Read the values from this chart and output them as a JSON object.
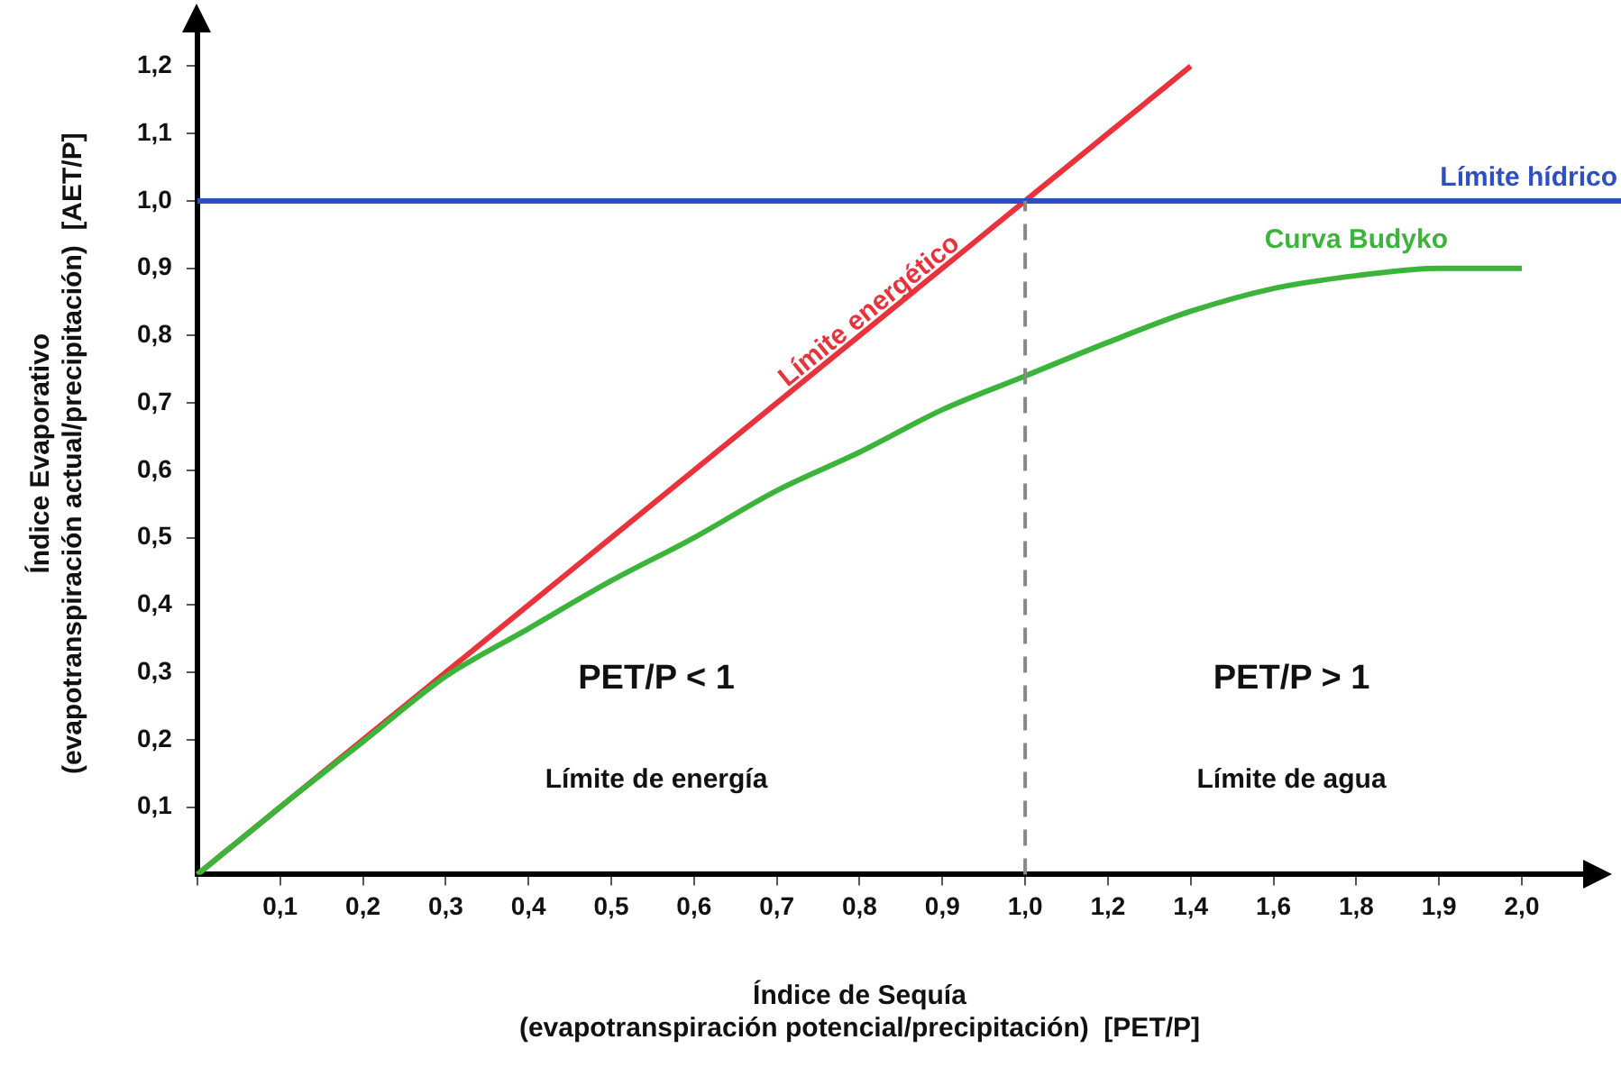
{
  "chart_data": {
    "type": "line",
    "xlabel": "Índice de Sequía\n(evapotranspiración potencial/precipitación)  [PET/P]",
    "ylabel": "Índice Evaporativo\n(evapotranspiración actual/precipitación)  [AET/P]",
    "categories": [
      null,
      "0,1",
      "0,2",
      "0,3",
      "0,4",
      "0,5",
      "0,6",
      "0,7",
      "0,8",
      "0,9",
      "1,0",
      "1,2",
      "1,4",
      "1,6",
      "1,8",
      "1,9",
      "2,0"
    ],
    "series": [
      {
        "name": "Límite energético",
        "color": "#e8323c",
        "values": [
          0,
          0.1,
          0.2,
          0.3,
          0.4,
          0.5,
          0.6,
          0.7,
          0.8,
          0.9,
          1.0,
          1.1,
          1.2,
          null,
          null,
          null,
          null
        ]
      },
      {
        "name": "Curva Budyko",
        "color": "#3cb43c",
        "values": [
          0,
          0.1,
          0.197,
          0.294,
          0.365,
          0.436,
          0.5,
          0.57,
          0.627,
          0.69,
          0.74,
          0.79,
          0.836,
          0.87,
          0.889,
          0.9,
          0.9
        ]
      }
    ],
    "ylim": [
      0,
      1.25
    ],
    "yticks": [
      {
        "value": 0.1,
        "label": "0,1"
      },
      {
        "value": 0.2,
        "label": "0,2"
      },
      {
        "value": 0.3,
        "label": "0,3"
      },
      {
        "value": 0.4,
        "label": "0,4"
      },
      {
        "value": 0.5,
        "label": "0,5"
      },
      {
        "value": 0.6,
        "label": "0,6"
      },
      {
        "value": 0.7,
        "label": "0,7"
      },
      {
        "value": 0.8,
        "label": "0,8"
      },
      {
        "value": 0.9,
        "label": "0,9"
      },
      {
        "value": 1.0,
        "label": "1,0"
      },
      {
        "value": 1.1,
        "label": "1,1"
      },
      {
        "value": 1.2,
        "label": "1,2"
      }
    ],
    "ref_lines": [
      {
        "axis": "y",
        "value": 1.0,
        "label": "Límite hídrico",
        "color": "#2f4fc0",
        "line_style": "solid"
      },
      {
        "axis": "x",
        "value": "1,0",
        "color": "#888888",
        "line_style": "dashed"
      }
    ],
    "annotations": [
      "PET/P < 1",
      "Límite de energía",
      "PET/P > 1",
      "Límite de agua"
    ],
    "grid": false,
    "legend": false,
    "marker": "none",
    "line_style": "solid"
  }
}
